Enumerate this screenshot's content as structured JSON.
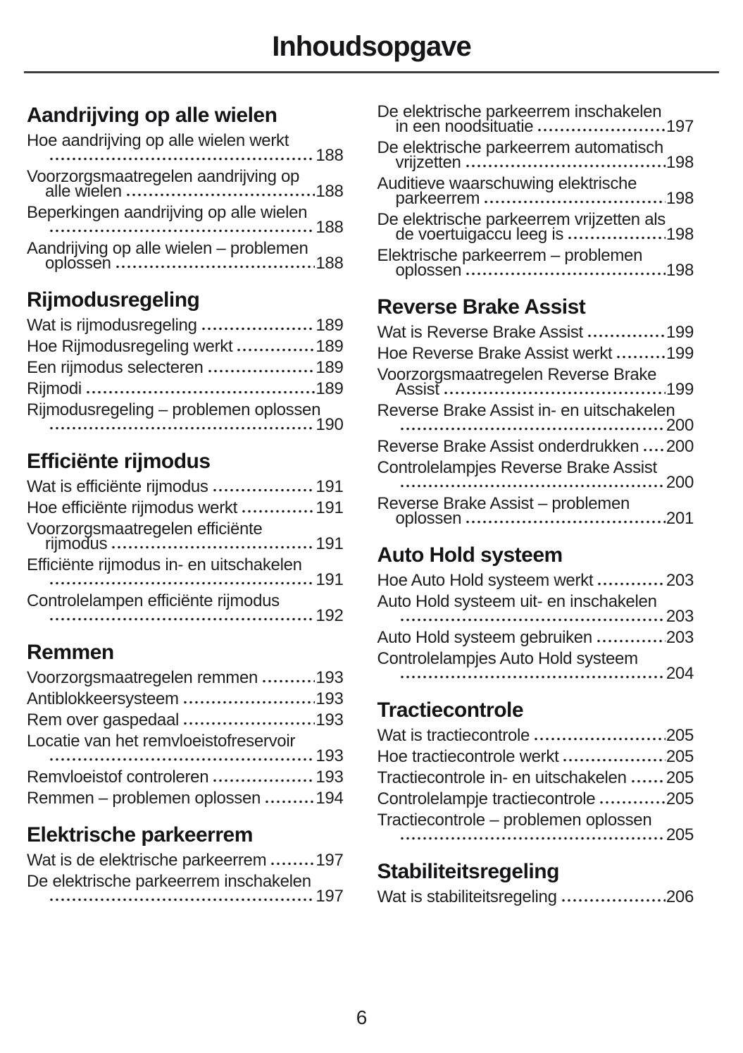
{
  "header": {
    "title": "Inhoudsopgave"
  },
  "footer": {
    "page_number": "6"
  },
  "colors": {
    "ink": "#1d1d1f",
    "divider": "#3f3f3f",
    "background": "#ffffff"
  },
  "columns": [
    {
      "side": "left",
      "sections": [
        {
          "heading": "Aandrijving op alle wielen",
          "entries": [
            {
              "first": "Hoe aandrijving op alle wielen werkt",
              "second": "",
              "page": "188",
              "two_line": true
            },
            {
              "first": "Voorzorgsmaatregelen aandrijving op",
              "second": "alle wielen",
              "page": "188",
              "two_line": true
            },
            {
              "first": "Beperkingen aandrijving op alle wielen",
              "second": "",
              "page": "188",
              "two_line": true
            },
            {
              "first": "Aandrijving op alle wielen – problemen",
              "second": "oplossen",
              "page": "188",
              "two_line": true
            }
          ]
        },
        {
          "heading": "Rijmodusregeling",
          "entries": [
            {
              "first": "Wat is rijmodusregeling",
              "page": "189",
              "two_line": false
            },
            {
              "first": "Hoe Rijmodusregeling werkt",
              "page": "189",
              "two_line": false
            },
            {
              "first": "Een rijmodus selecteren",
              "page": "189",
              "two_line": false
            },
            {
              "first": "Rijmodi",
              "page": "189",
              "two_line": false
            },
            {
              "first": "Rijmodusregeling – problemen oplossen",
              "second": "",
              "page": "190",
              "two_line": true
            }
          ]
        },
        {
          "heading": "Efficiënte rijmodus",
          "entries": [
            {
              "first": "Wat is efficiënte rijmodus",
              "page": "191",
              "two_line": false
            },
            {
              "first": "Hoe efficiënte rijmodus werkt",
              "page": "191",
              "two_line": false
            },
            {
              "first": "Voorzorgsmaatregelen efficiënte",
              "second": "rijmodus",
              "page": "191",
              "two_line": true
            },
            {
              "first": "Efficiënte rijmodus in- en uitschakelen",
              "second": "",
              "page": "191",
              "two_line": true
            },
            {
              "first": "Controlelampen efficiënte rijmodus",
              "second": "",
              "page": "192",
              "two_line": true
            }
          ]
        },
        {
          "heading": "Remmen",
          "entries": [
            {
              "first": "Voorzorgsmaatregelen remmen",
              "page": "193",
              "two_line": false
            },
            {
              "first": "Antiblokkeersysteem",
              "page": "193",
              "two_line": false
            },
            {
              "first": "Rem over gaspedaal",
              "page": "193",
              "two_line": false
            },
            {
              "first": "Locatie van het remvloeistofreservoir",
              "second": "",
              "page": "193",
              "two_line": true
            },
            {
              "first": "Remvloeistof controleren",
              "page": "193",
              "two_line": false
            },
            {
              "first": "Remmen – problemen oplossen",
              "page": "194",
              "two_line": false
            }
          ]
        },
        {
          "heading": "Elektrische parkeerrem",
          "entries": [
            {
              "first": "Wat is de elektrische parkeerrem",
              "page": "197",
              "two_line": false
            },
            {
              "first": "De elektrische parkeerrem inschakelen",
              "second": "",
              "page": "197",
              "two_line": true
            }
          ]
        }
      ]
    },
    {
      "side": "right",
      "sections": [
        {
          "heading": "",
          "entries": [
            {
              "first": "De elektrische parkeerrem inschakelen",
              "second": "in een noodsituatie",
              "page": "197",
              "two_line": true
            },
            {
              "first": "De elektrische parkeerrem automatisch",
              "second": "vrijzetten",
              "page": "198",
              "two_line": true
            },
            {
              "first": "Auditieve waarschuwing elektrische",
              "second": "parkeerrem",
              "page": "198",
              "two_line": true
            },
            {
              "first": "De elektrische parkeerrem vrijzetten als",
              "second": "de voertuigaccu leeg is",
              "page": "198",
              "two_line": true
            },
            {
              "first": "Elektrische parkeerrem – problemen",
              "second": "oplossen",
              "page": "198",
              "two_line": true
            }
          ]
        },
        {
          "heading": "Reverse Brake Assist",
          "entries": [
            {
              "first": "Wat is Reverse Brake Assist",
              "page": "199",
              "two_line": false
            },
            {
              "first": "Hoe Reverse Brake Assist werkt",
              "page": "199",
              "two_line": false
            },
            {
              "first": "Voorzorgsmaatregelen Reverse Brake",
              "second": "Assist",
              "page": "199",
              "two_line": true
            },
            {
              "first": "Reverse Brake Assist in- en uitschakelen",
              "second": "",
              "page": "200",
              "two_line": true
            },
            {
              "first": "Reverse Brake Assist onderdrukken",
              "page": "200",
              "two_line": false
            },
            {
              "first": "Controlelampjes Reverse Brake Assist",
              "second": "",
              "page": "200",
              "two_line": true
            },
            {
              "first": "Reverse Brake Assist – problemen",
              "second": "oplossen",
              "page": "201",
              "two_line": true
            }
          ]
        },
        {
          "heading": "Auto Hold systeem",
          "entries": [
            {
              "first": "Hoe Auto Hold systeem werkt",
              "page": "203",
              "two_line": false
            },
            {
              "first": "Auto Hold systeem uit- en inschakelen",
              "second": "",
              "page": "203",
              "two_line": true
            },
            {
              "first": "Auto Hold systeem gebruiken",
              "page": "203",
              "two_line": false
            },
            {
              "first": "Controlelampjes Auto Hold systeem",
              "second": "",
              "page": "204",
              "two_line": true
            }
          ]
        },
        {
          "heading": "Tractiecontrole",
          "entries": [
            {
              "first": "Wat is tractiecontrole",
              "page": "205",
              "two_line": false
            },
            {
              "first": "Hoe tractiecontrole werkt",
              "page": "205",
              "two_line": false
            },
            {
              "first": "Tractiecontrole in- en uitschakelen",
              "page": "205",
              "two_line": false
            },
            {
              "first": "Controlelampje tractiecontrole",
              "page": "205",
              "two_line": false
            },
            {
              "first": "Tractiecontrole – problemen oplossen",
              "second": "",
              "page": "205",
              "two_line": true
            }
          ]
        },
        {
          "heading": "Stabiliteitsregeling",
          "entries": [
            {
              "first": "Wat is stabiliteitsregeling",
              "page": "206",
              "two_line": false
            }
          ]
        }
      ]
    }
  ]
}
